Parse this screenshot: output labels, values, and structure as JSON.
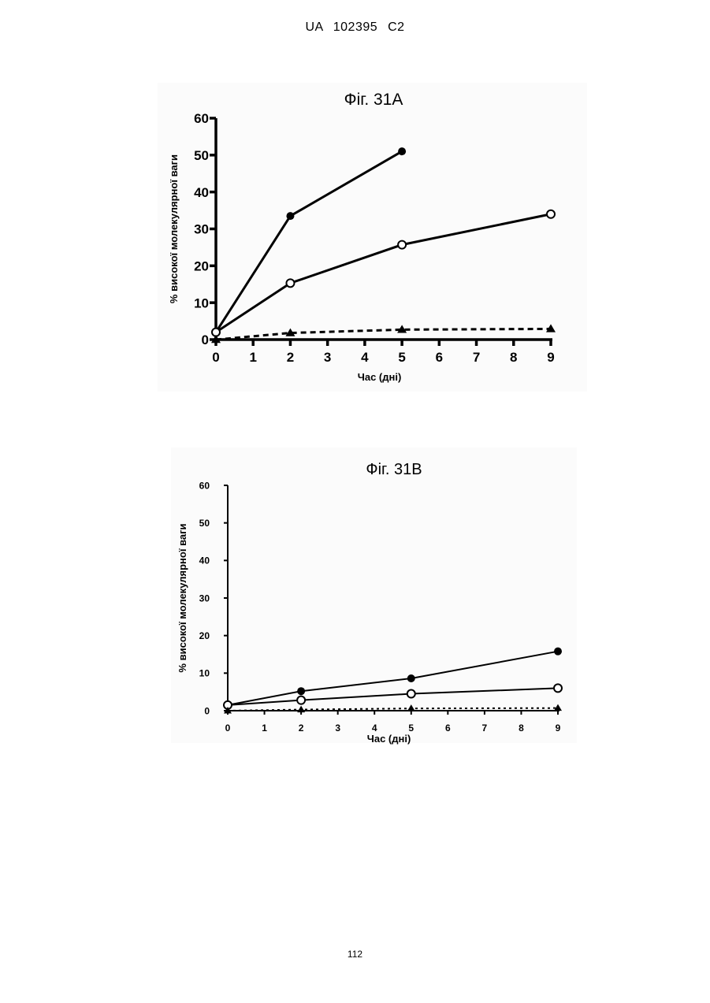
{
  "document": {
    "header": "UA 102395 C2",
    "page_number": "112"
  },
  "chart_data": [
    {
      "type": "line",
      "title": "Фіг. 31А",
      "xlabel": "Час (дні)",
      "ylabel": "% високої молекулярної ваги",
      "x_ticks": [
        "0",
        "1",
        "2",
        "3",
        "4",
        "5",
        "6",
        "7",
        "8",
        "9"
      ],
      "y_ticks": [
        "0",
        "10",
        "20",
        "30",
        "40",
        "50",
        "60"
      ],
      "xlim": [
        0,
        9
      ],
      "ylim": [
        0,
        60
      ],
      "grid": false,
      "series": [
        {
          "marker": "filled-circle",
          "line": "solid",
          "x": [
            0,
            2,
            5
          ],
          "y": [
            2,
            33.5,
            51
          ]
        },
        {
          "marker": "open-circle",
          "line": "solid",
          "x": [
            0,
            2,
            5,
            9
          ],
          "y": [
            2,
            15.3,
            25.7,
            34
          ]
        },
        {
          "marker": "filled-triangle",
          "line": "dashed",
          "x": [
            0,
            2,
            5,
            9
          ],
          "y": [
            0,
            1.8,
            2.7,
            2.9
          ]
        }
      ]
    },
    {
      "type": "line",
      "title": "Фіг. 31В",
      "xlabel": "Час (дні)",
      "ylabel": "% високої молекулярної ваги",
      "x_ticks": [
        "0",
        "1",
        "2",
        "3",
        "4",
        "5",
        "6",
        "7",
        "8",
        "9"
      ],
      "y_ticks": [
        "0",
        "10",
        "20",
        "30",
        "40",
        "50",
        "60"
      ],
      "xlim": [
        0,
        9
      ],
      "ylim": [
        0,
        60
      ],
      "grid": false,
      "series": [
        {
          "marker": "filled-circle",
          "line": "solid",
          "x": [
            0,
            2,
            5,
            9
          ],
          "y": [
            1.5,
            5.2,
            8.6,
            15.8
          ]
        },
        {
          "marker": "open-circle",
          "line": "solid",
          "x": [
            0,
            2,
            5,
            9
          ],
          "y": [
            1.5,
            2.8,
            4.5,
            6
          ]
        },
        {
          "marker": "filled-triangle",
          "line": "dotted",
          "x": [
            0,
            2,
            5,
            9
          ],
          "y": [
            0,
            0.3,
            0.6,
            0.7
          ]
        }
      ]
    }
  ]
}
